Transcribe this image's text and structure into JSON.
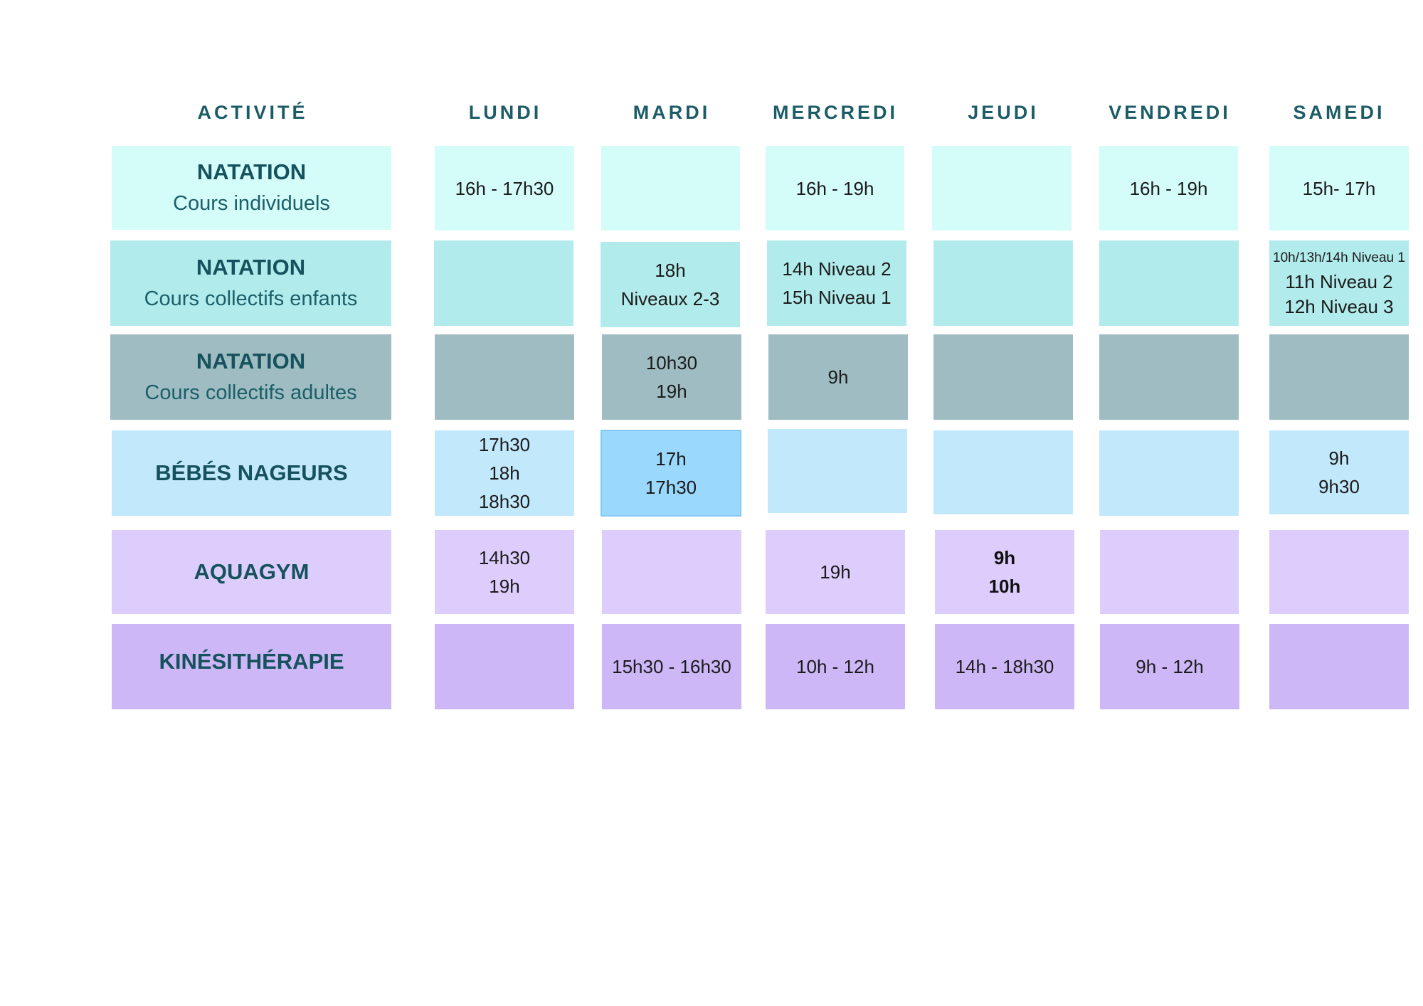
{
  "headers": {
    "activity": "ACTIVITÉ",
    "days": [
      "LUNDI",
      "MARDI",
      "MERCREDI",
      "JEUDI",
      "VENDREDI",
      "SAMEDI"
    ]
  },
  "rows": [
    {
      "name": "NATATION",
      "subtitle": "Cours individuels",
      "color": "#d4fcf9",
      "cells": [
        [
          "16h - 17h30"
        ],
        [],
        [
          "16h - 19h"
        ],
        [],
        [
          "16h - 19h"
        ],
        [
          "15h- 17h"
        ]
      ]
    },
    {
      "name": "NATATION",
      "subtitle": "Cours collectifs enfants",
      "color": "#b2ebec",
      "cells": [
        [],
        [
          "18h",
          "Niveaux 2-3"
        ],
        [
          "14h Niveau 2",
          "15h Niveau 1"
        ],
        [],
        [],
        [
          "10h/13h/14h Niveau 1",
          "11h Niveau 2",
          "12h Niveau 3"
        ]
      ]
    },
    {
      "name": "NATATION",
      "subtitle": "Cours collectifs adultes",
      "color": "#9ebcc1",
      "cells": [
        [],
        [
          "10h30",
          "19h"
        ],
        [
          "9h"
        ],
        [],
        [],
        []
      ]
    },
    {
      "name": "BÉBÉS NAGEURS",
      "subtitle": "",
      "color": "#c2e8fc",
      "highlight_color": "#9bd8fd",
      "cells": [
        [
          "17h30",
          "18h",
          "18h30"
        ],
        [
          "17h",
          "17h30"
        ],
        [],
        [],
        [],
        [
          "9h",
          "9h30"
        ]
      ]
    },
    {
      "name": "AQUAGYM",
      "subtitle": "",
      "color": "#ddcdfc",
      "cells": [
        [
          "14h30",
          "19h"
        ],
        [],
        [
          "19h"
        ],
        [
          "9h",
          "10h"
        ],
        [],
        []
      ]
    },
    {
      "name": "KINÉSITHÉRAPIE",
      "subtitle": "",
      "color": "#cdb7f6",
      "cells": [
        [],
        [
          "15h30 - 16h30"
        ],
        [
          "10h - 12h"
        ],
        [
          "14h - 18h30"
        ],
        [
          "9h - 12h"
        ],
        []
      ]
    }
  ]
}
